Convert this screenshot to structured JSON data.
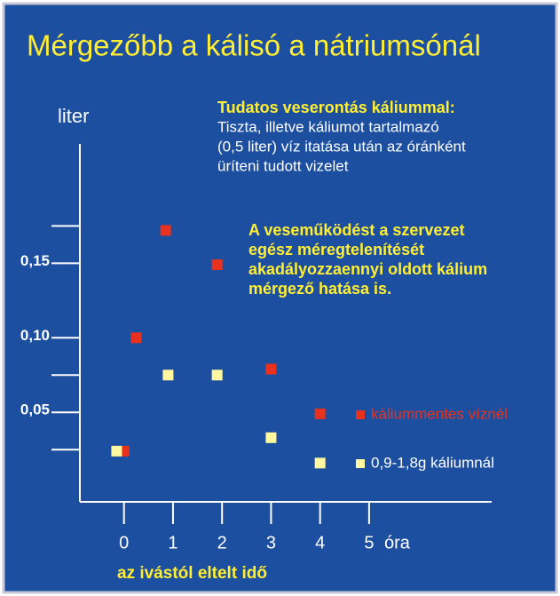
{
  "chart_data": {
    "type": "scatter",
    "title": "Mérgezőbb a kálisó a nátriumsónál",
    "y_label": "liter",
    "x_unit_label": "óra",
    "x_label": "az ivástól eltelt idő",
    "annotation_title": "Tudatos veserontás káliummal:",
    "annotation_lines": [
      "Tiszta, illetve káliumot tartalmazó",
      "(0,5 liter) víz itatása után az óránként",
      "üríteni tudott vizelet"
    ],
    "note_lines": [
      "A veseműködést a szervezet",
      "egész méregtelenítését",
      "akadályozzaennyi oldott kálium",
      "mérgező hatása is."
    ],
    "xlim": [
      -0.9,
      7.5
    ],
    "ylim": [
      -0.01,
      0.23
    ],
    "xticks": [
      0,
      1,
      2,
      3,
      4,
      5
    ],
    "yticks": [
      {
        "value": 0.05,
        "label": "0,05"
      },
      {
        "value": 0.1,
        "label": "0,10"
      },
      {
        "value": 0.15,
        "label": "0,15"
      }
    ],
    "yminorticks": [
      0.025,
      0.075,
      0.175
    ],
    "series": [
      {
        "name": "káliummentes víznél",
        "color": "#e8321e",
        "text_color": "#e8321e",
        "x": [
          0,
          0.25,
          0.85,
          1.9,
          3,
          4
        ],
        "values": [
          0.024,
          0.1,
          0.172,
          0.149,
          0.079,
          0.049
        ]
      },
      {
        "name": "0,9-1,8g káliumnál",
        "color": "#fff8a0",
        "text_color": "#ffffff",
        "x": [
          -0.15,
          0.9,
          1.9,
          3,
          4
        ],
        "values": [
          0.024,
          0.075,
          0.075,
          0.033,
          0.016
        ]
      }
    ]
  }
}
